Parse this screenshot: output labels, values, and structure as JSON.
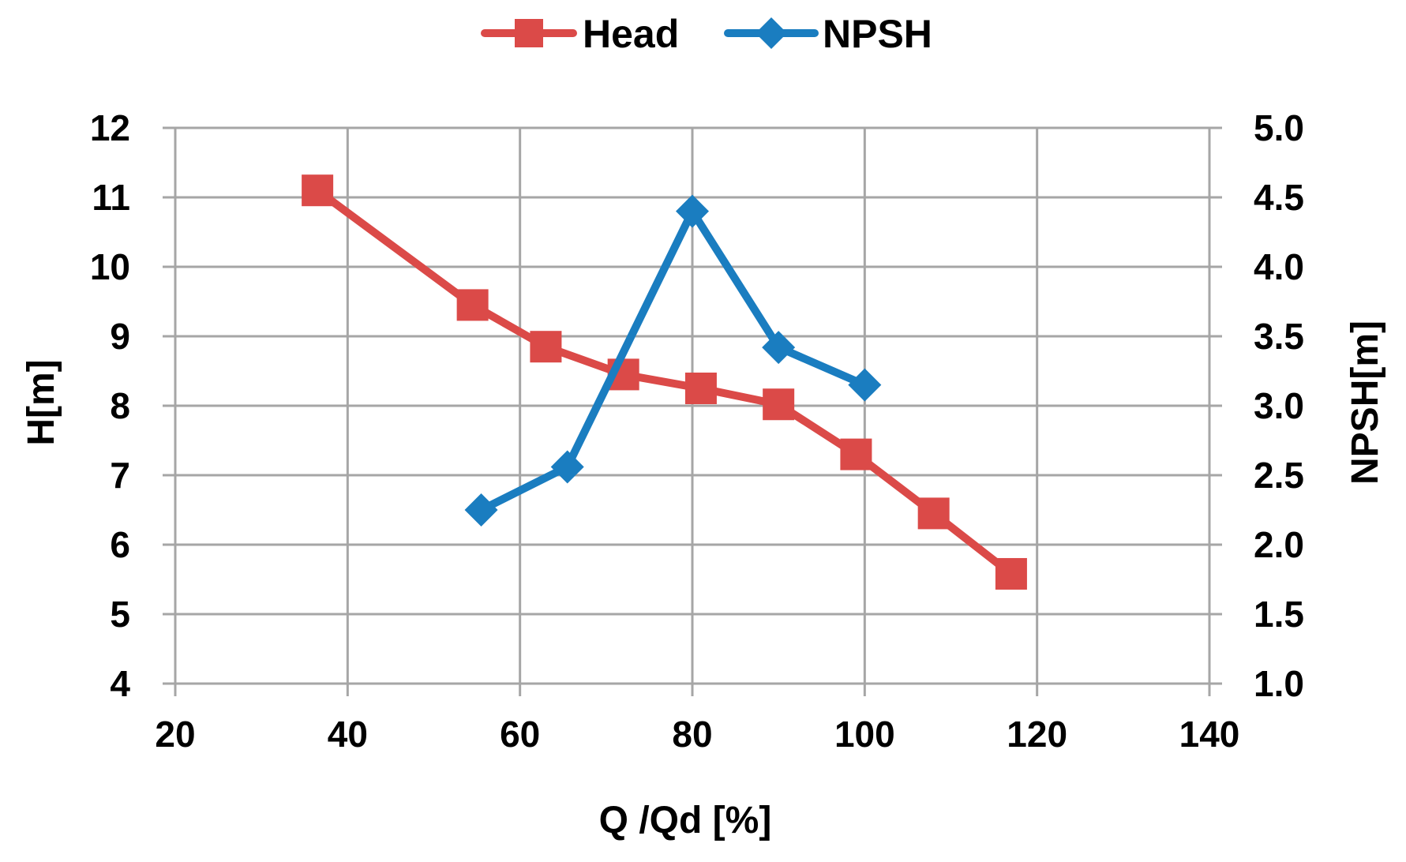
{
  "chart_data": {
    "type": "line",
    "xlabel": "Q /Qd [%]",
    "ylabel_left": "H[m]",
    "ylabel_right": "NPSH[m]",
    "xlim": [
      20,
      140
    ],
    "ylim_left": [
      4,
      12
    ],
    "ylim_right": [
      1.0,
      5.0
    ],
    "x_ticks": [
      20,
      40,
      60,
      80,
      100,
      120,
      140
    ],
    "y_left_ticks": [
      4,
      5,
      6,
      7,
      8,
      9,
      10,
      11,
      12
    ],
    "y_right_ticks": [
      "1.0",
      "1.5",
      "2.0",
      "2.5",
      "3.0",
      "3.5",
      "4.0",
      "4.5",
      "5.0"
    ],
    "grid": true,
    "legend_position": "top-center",
    "series": [
      {
        "name": "Head",
        "axis": "left",
        "marker": "square",
        "color": "#DB4A48",
        "x": [
          36.5,
          54.5,
          63.0,
          72.0,
          81.0,
          90.0,
          99.0,
          108.0,
          117.0
        ],
        "y": [
          11.1,
          9.45,
          8.85,
          8.45,
          8.25,
          8.02,
          7.3,
          6.45,
          5.58
        ]
      },
      {
        "name": "NPSH",
        "axis": "right",
        "marker": "diamond",
        "color": "#1A7DC0",
        "x": [
          55.5,
          65.5,
          80.0,
          90.0,
          100.0
        ],
        "y": [
          2.25,
          2.56,
          4.4,
          3.42,
          3.15
        ]
      }
    ]
  }
}
